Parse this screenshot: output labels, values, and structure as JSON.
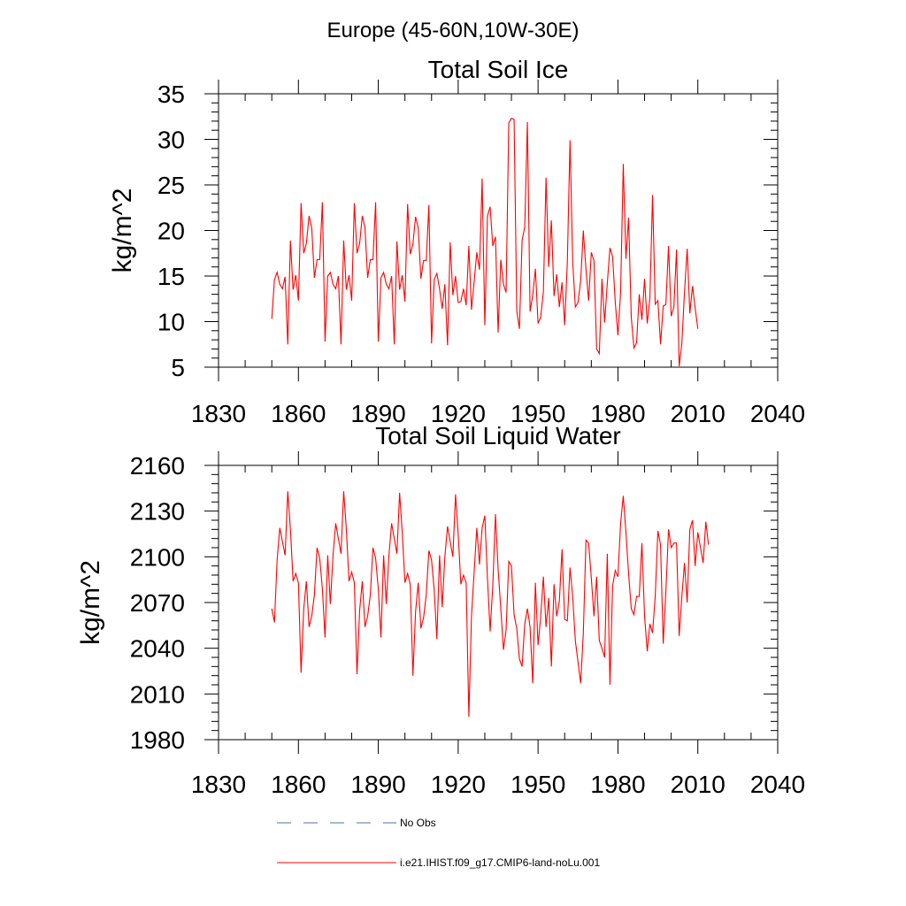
{
  "suptitle": "Europe (45-60N,10W-30E)",
  "legend": {
    "entries": [
      {
        "label": "No Obs",
        "color": "#5a6fa8",
        "dash": true
      },
      {
        "label": "i.e21.IHIST.f09_g17.CMIP6-land-noLu.001",
        "color": "#ff0000",
        "dash": false
      }
    ]
  },
  "chart_data": [
    {
      "type": "line",
      "title": "Total Soil Ice",
      "ylabel": "kg/m^2",
      "xlabel": "",
      "xlim": [
        1830,
        2040
      ],
      "ylim": [
        5,
        35
      ],
      "xticks": [
        1830,
        1860,
        1890,
        1920,
        1950,
        1980,
        2010,
        2040
      ],
      "yticks": [
        5,
        10,
        15,
        20,
        25,
        30,
        35
      ],
      "x_start": 1850,
      "x_step": 1,
      "series": [
        {
          "color": "#ff0000",
          "values": [
            10.3,
            14.6,
            15.4,
            14.1,
            13.6,
            14.9,
            7.5,
            18.9,
            13.5,
            15.1,
            12.3,
            23.0,
            17.5,
            18.6,
            21.6,
            20.3,
            14.8,
            16.8,
            16.8,
            23.1,
            7.8,
            15.0,
            15.4,
            14.1,
            13.6,
            15.0,
            7.5,
            18.9,
            13.5,
            15.1,
            12.3,
            23.0,
            17.5,
            18.6,
            21.6,
            20.3,
            14.8,
            16.8,
            16.8,
            23.1,
            7.8,
            14.8,
            15.4,
            14.1,
            13.6,
            15.0,
            7.5,
            18.8,
            13.5,
            15.1,
            12.2,
            22.9,
            17.4,
            18.5,
            21.5,
            20.3,
            14.7,
            16.7,
            16.7,
            22.8,
            7.6,
            14.6,
            15.3,
            13.6,
            11.4,
            14.1,
            7.4,
            18.7,
            12.9,
            15.0,
            12.1,
            12.2,
            13.6,
            11.8,
            18.3,
            11.3,
            14.4,
            17.6,
            15.7,
            25.7,
            9.6,
            21.6,
            22.6,
            18.3,
            19.3,
            8.8,
            16.8,
            14.1,
            13.2,
            31.8,
            32.3,
            32.2,
            11.2,
            9.2,
            18.9,
            20.4,
            31.9,
            11.1,
            12.9,
            15.8,
            9.8,
            10.5,
            13.3,
            25.8,
            16.0,
            21.1,
            12.8,
            15.2,
            11.6,
            14.3,
            9.6,
            16.6,
            29.9,
            16.6,
            11.6,
            12.1,
            14.5,
            20.0,
            15.7,
            12.3,
            17.6,
            16.7,
            7.0,
            6.5,
            14.7,
            9.9,
            14.2,
            18.1,
            17.1,
            12.1,
            8.5,
            13.2,
            27.3,
            16.9,
            21.4,
            10.5,
            7.1,
            7.7,
            13.0,
            10.2,
            14.7,
            9.8,
            12.6,
            23.9,
            11.9,
            12.3,
            7.5,
            11.7,
            11.9,
            18.3,
            10.6,
            11.6,
            17.9,
            5.1,
            7.6,
            13.3,
            18.0,
            10.9,
            13.9,
            11.5,
            9.2
          ]
        }
      ]
    },
    {
      "type": "line",
      "title": "Total Soil Liquid Water",
      "ylabel": "kg/m^2",
      "xlabel": "",
      "xlim": [
        1830,
        2040
      ],
      "ylim": [
        1980,
        2160
      ],
      "xticks": [
        1830,
        1860,
        1890,
        1920,
        1950,
        1980,
        2010,
        2040
      ],
      "yticks": [
        1980,
        2010,
        2040,
        2070,
        2100,
        2130,
        2160
      ],
      "x_start": 1850,
      "x_step": 1,
      "series": [
        {
          "color": "#ff0000",
          "values": [
            2066,
            2057,
            2098,
            2119,
            2110,
            2101,
            2143,
            2118,
            2084,
            2089,
            2083,
            2024,
            2066,
            2084,
            2054,
            2061,
            2075,
            2106,
            2099,
            2079,
            2047,
            2101,
            2069,
            2101,
            2122,
            2112,
            2102,
            2143,
            2118,
            2084,
            2090,
            2083,
            2023,
            2065,
            2084,
            2054,
            2061,
            2075,
            2106,
            2099,
            2079,
            2047,
            2101,
            2069,
            2101,
            2122,
            2112,
            2102,
            2142,
            2116,
            2083,
            2089,
            2082,
            2022,
            2064,
            2083,
            2053,
            2060,
            2075,
            2104,
            2098,
            2078,
            2046,
            2101,
            2067,
            2100,
            2120,
            2110,
            2100,
            2141,
            2115,
            2082,
            2088,
            2083,
            1995,
            2061,
            2090,
            2119,
            2095,
            2119,
            2127,
            2086,
            2051,
            2081,
            2128,
            2092,
            2066,
            2039,
            2052,
            2097,
            2094,
            2062,
            2053,
            2033,
            2028,
            2056,
            2066,
            2054,
            2017,
            2083,
            2042,
            2061,
            2087,
            2054,
            2073,
            2028,
            2082,
            2061,
            2071,
            2105,
            2059,
            2058,
            2093,
            2074,
            2045,
            2031,
            2017,
            2050,
            2111,
            2109,
            2086,
            2061,
            2087,
            2045,
            2040,
            2034,
            2102,
            2016,
            2081,
            2091,
            2087,
            2122,
            2140,
            2116,
            2089,
            2066,
            2062,
            2074,
            2074,
            2109,
            2061,
            2038,
            2056,
            2050,
            2074,
            2117,
            2108,
            2043,
            2077,
            2118,
            2106,
            2109,
            2109,
            2048,
            2074,
            2096,
            2070,
            2118,
            2124,
            2094,
            2116,
            2106,
            2096,
            2123,
            2108
          ]
        }
      ]
    }
  ]
}
